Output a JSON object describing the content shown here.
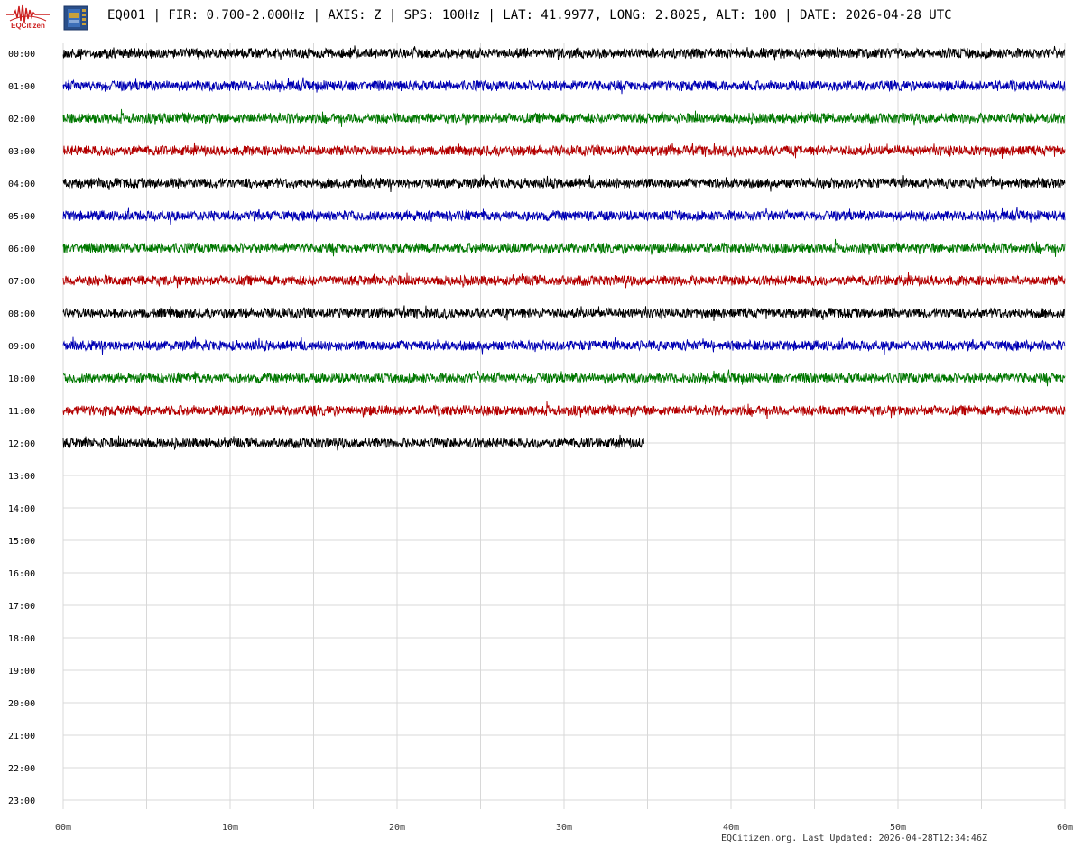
{
  "header": {
    "logo_text": "EQCitizen",
    "title": "EQ001 | FIR: 0.700-2.000Hz | AXIS: Z | SPS: 100Hz | LAT: 41.9977, LONG: 2.8025, ALT: 100 | DATE: 2026-04-28 UTC"
  },
  "footer": {
    "text": "EQCitizen.org. Last Updated: 2026-04-28T12:34:46Z"
  },
  "chart_data": {
    "type": "line",
    "row_labels": [
      "00:00",
      "01:00",
      "02:00",
      "03:00",
      "04:00",
      "05:00",
      "06:00",
      "07:00",
      "08:00",
      "09:00",
      "10:00",
      "11:00",
      "12:00",
      "13:00",
      "14:00",
      "15:00",
      "16:00",
      "17:00",
      "18:00",
      "19:00",
      "20:00",
      "21:00",
      "22:00",
      "23:00"
    ],
    "x_ticks": [
      "00m",
      "10m",
      "20m",
      "30m",
      "40m",
      "50m",
      "60m"
    ],
    "xlim": [
      0,
      60
    ],
    "minor_grid_minutes": 5,
    "trace_colors": [
      "#000000",
      "#0000b4",
      "#007800",
      "#b40000"
    ],
    "grid_color": "#d8d8d8",
    "grid": true,
    "series": [
      {
        "row": "00:00",
        "color": "#000000",
        "minutes_recorded": 60
      },
      {
        "row": "01:00",
        "color": "#0000b4",
        "minutes_recorded": 60
      },
      {
        "row": "02:00",
        "color": "#007800",
        "minutes_recorded": 60
      },
      {
        "row": "03:00",
        "color": "#b40000",
        "minutes_recorded": 60
      },
      {
        "row": "04:00",
        "color": "#000000",
        "minutes_recorded": 60
      },
      {
        "row": "05:00",
        "color": "#0000b4",
        "minutes_recorded": 60
      },
      {
        "row": "06:00",
        "color": "#007800",
        "minutes_recorded": 60
      },
      {
        "row": "07:00",
        "color": "#b40000",
        "minutes_recorded": 60
      },
      {
        "row": "08:00",
        "color": "#000000",
        "minutes_recorded": 60
      },
      {
        "row": "09:00",
        "color": "#0000b4",
        "minutes_recorded": 60
      },
      {
        "row": "10:00",
        "color": "#007800",
        "minutes_recorded": 60
      },
      {
        "row": "11:00",
        "color": "#b40000",
        "minutes_recorded": 60
      },
      {
        "row": "12:00",
        "color": "#000000",
        "minutes_recorded": 34.8
      }
    ]
  }
}
